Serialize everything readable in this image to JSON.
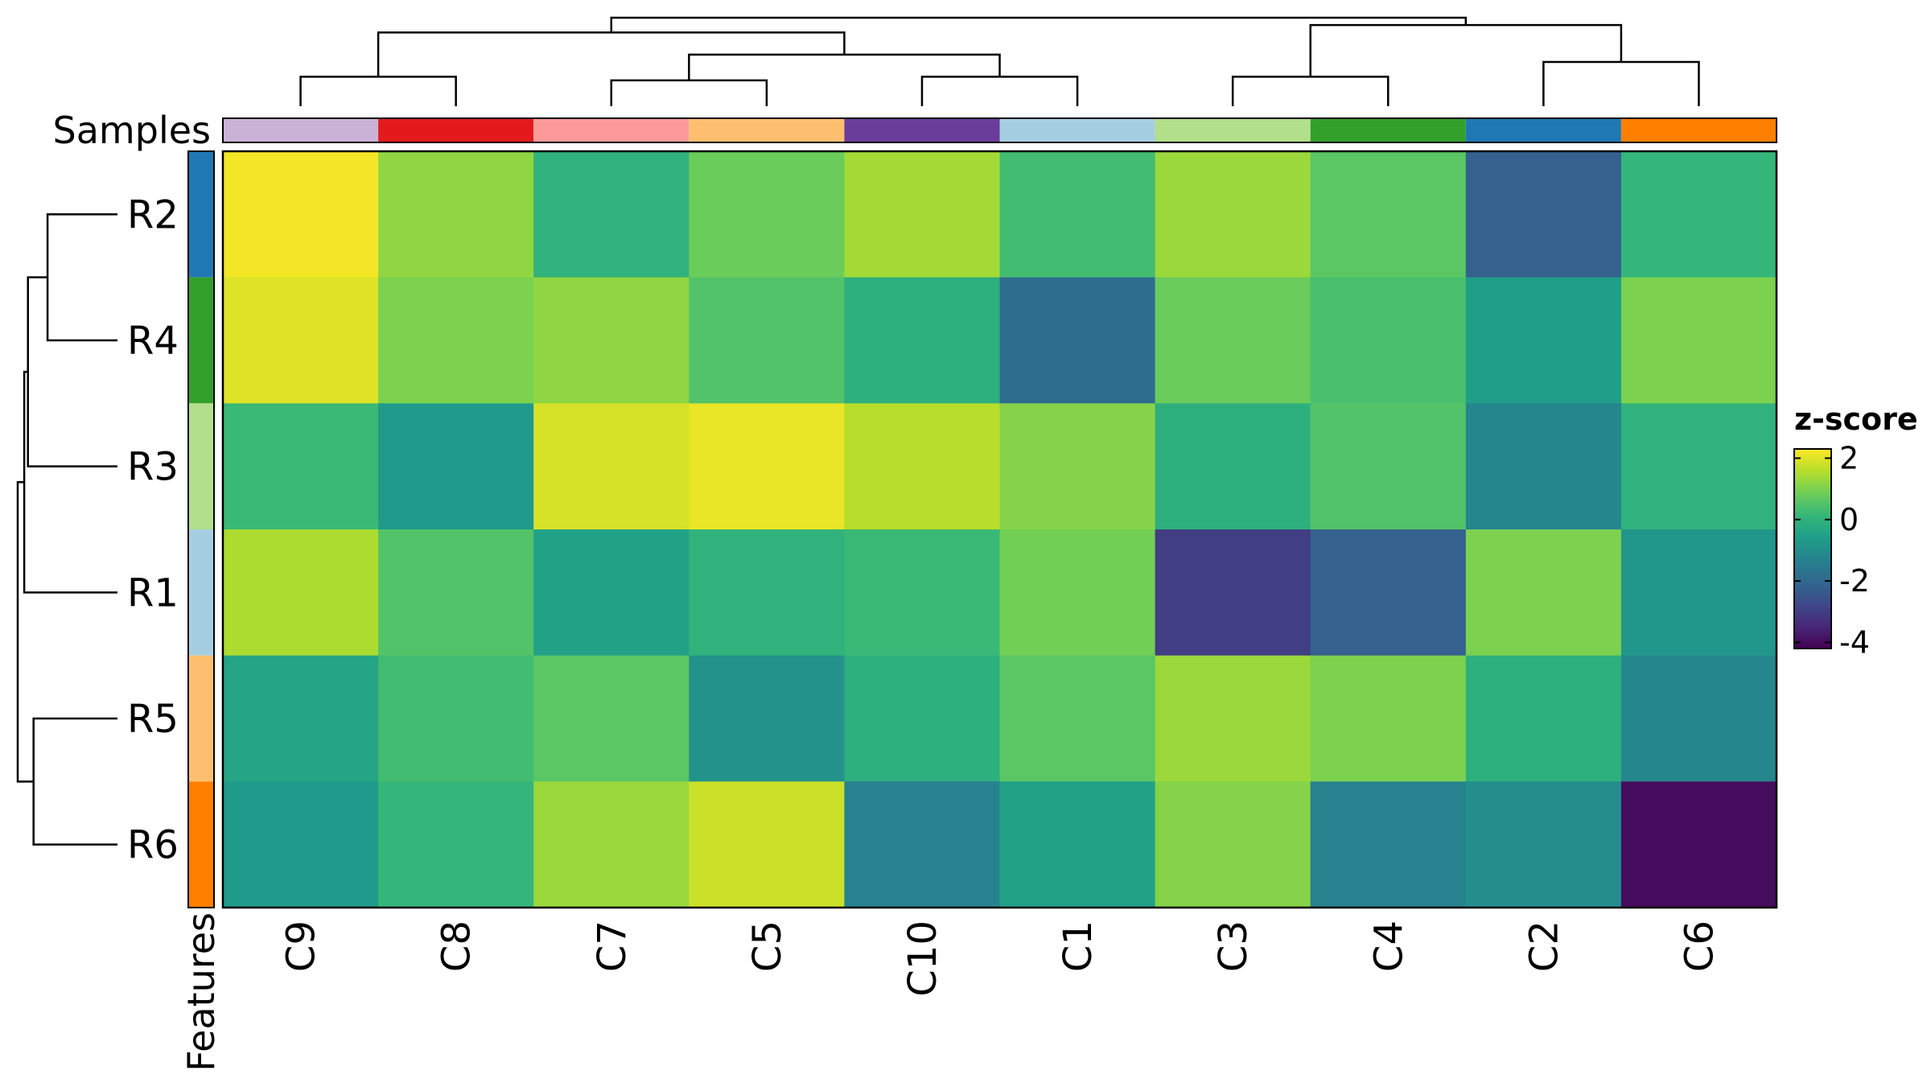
{
  "chart_data": {
    "type": "heatmap",
    "column_annotation_label": "Samples",
    "row_annotation_label": "Features",
    "columns": [
      "C9",
      "C8",
      "C7",
      "C5",
      "C10",
      "C1",
      "C3",
      "C4",
      "C2",
      "C6"
    ],
    "rows": [
      "R2",
      "R4",
      "R3",
      "R1",
      "R5",
      "R6"
    ],
    "column_colors": [
      "#cab2d6",
      "#e31a1c",
      "#fb9a99",
      "#fdbf6f",
      "#6a3d9a",
      "#a6cee3",
      "#b2df8a",
      "#33a02c",
      "#1f78b4",
      "#ff7f00"
    ],
    "row_colors": [
      "#1f78b4",
      "#33a02c",
      "#b2df8a",
      "#a6cee3",
      "#fdbf6f",
      "#ff7f00"
    ],
    "values": [
      [
        2.2,
        1.2,
        0.0,
        0.8,
        1.4,
        0.3,
        1.3,
        0.6,
        -2.2,
        0.1
      ],
      [
        2.0,
        1.0,
        1.2,
        0.5,
        -0.1,
        -1.9,
        0.8,
        0.4,
        -0.6,
        1.0
      ],
      [
        0.2,
        -0.7,
        1.9,
        2.1,
        1.6,
        1.1,
        -0.1,
        0.5,
        -1.2,
        0.0
      ],
      [
        1.5,
        0.5,
        -0.5,
        0.0,
        0.2,
        0.9,
        -3.0,
        -2.2,
        1.0,
        -0.8
      ],
      [
        -0.4,
        0.3,
        0.6,
        -0.9,
        -0.1,
        0.6,
        1.3,
        1.0,
        -0.1,
        -1.2
      ],
      [
        -0.7,
        0.1,
        1.3,
        1.8,
        -1.3,
        -0.5,
        1.1,
        -1.3,
        -1.0,
        -4.0
      ]
    ],
    "legend": {
      "title": "z-score",
      "ticks": [
        "2",
        "0",
        "-2",
        "-4"
      ],
      "tick_values": [
        2,
        0,
        -2,
        -4
      ],
      "min": -4.2,
      "max": 2.3,
      "colormap": "viridis"
    },
    "column_dendrogram": {
      "merges": [
        [
          8,
          9,
          0.6
        ],
        [
          2,
          3,
          0.35
        ],
        [
          4,
          5,
          0.4
        ],
        [
          6,
          7,
          0.4
        ],
        [
          0,
          1,
          0.4
        ],
        [
          11,
          12,
          0.7
        ],
        [
          10,
          13,
          1.1
        ],
        [
          14,
          15,
          1.0
        ],
        [
          16,
          17,
          1.2
        ]
      ]
    },
    "row_dendrogram": {
      "merges": [
        [
          0,
          1,
          0.75
        ],
        [
          4,
          5,
          0.9
        ],
        [
          2,
          6,
          0.96
        ],
        [
          3,
          8,
          1.0
        ],
        [
          7,
          9,
          1.07
        ]
      ]
    }
  }
}
